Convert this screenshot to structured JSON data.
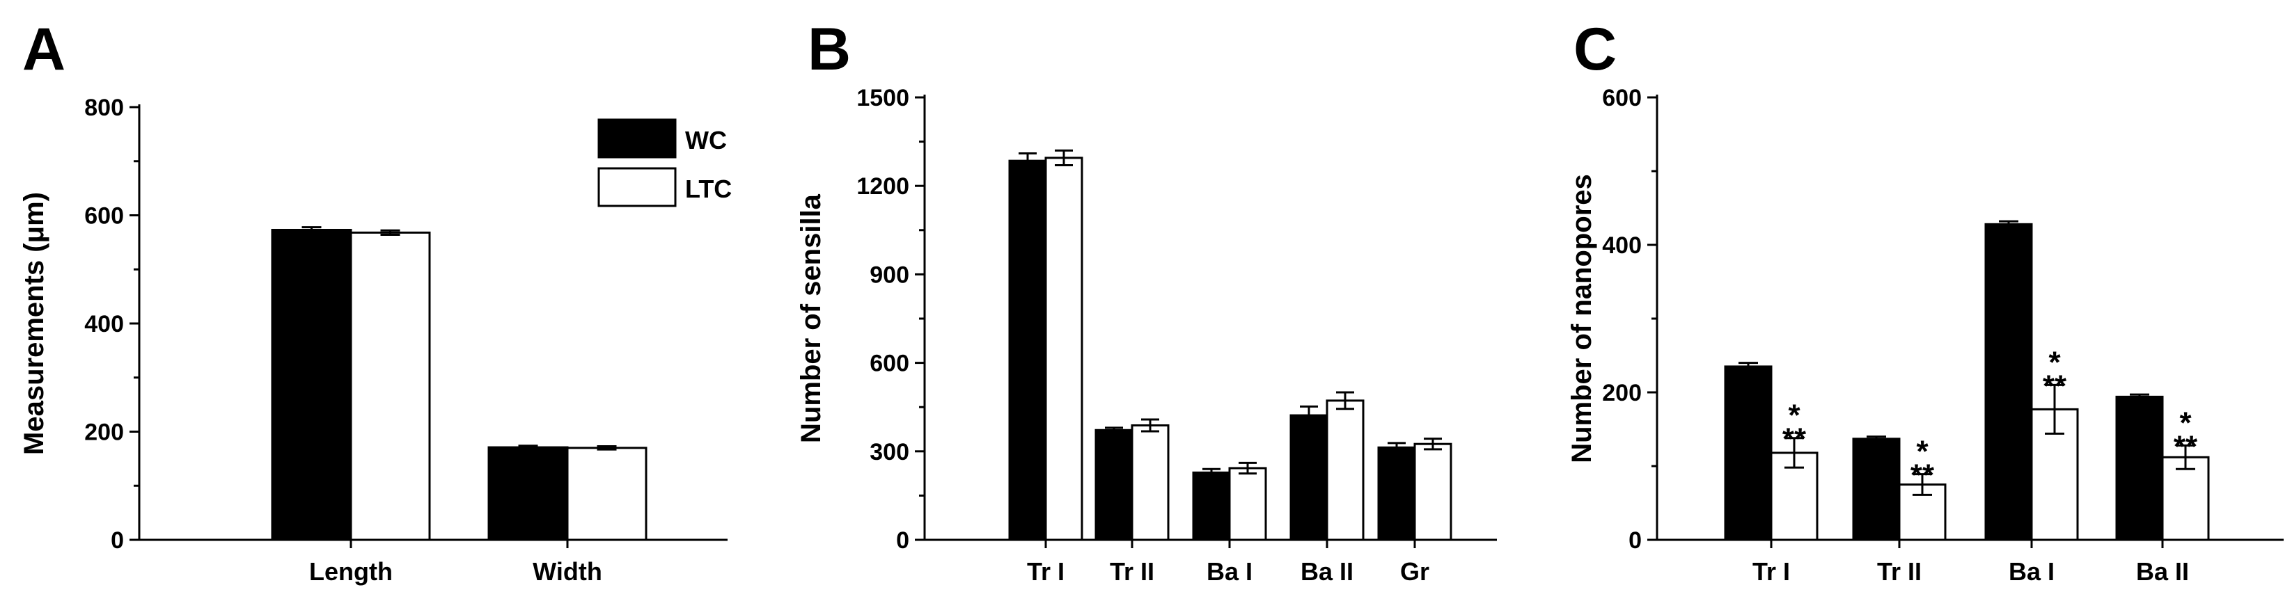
{
  "legend": [
    {
      "label": "WC",
      "color": "#000000"
    },
    {
      "label": "LTC",
      "color": "#ffffff"
    }
  ],
  "chart_data": [
    {
      "panel": "A",
      "type": "bar",
      "ylabel": "Measurements (μm)",
      "ylim": [
        0,
        800
      ],
      "yticks": [
        0,
        200,
        400,
        600,
        800
      ],
      "categories": [
        "Length",
        "Width"
      ],
      "series": [
        {
          "name": "WC",
          "values": [
            573,
            171
          ],
          "errors": [
            5,
            3
          ],
          "color": "#000000"
        },
        {
          "name": "LTC",
          "values": [
            568,
            170
          ],
          "errors": [
            4,
            3
          ],
          "color": "#ffffff"
        }
      ],
      "annotations": [
        "",
        ""
      ],
      "legend_placement": "top-right"
    },
    {
      "panel": "B",
      "type": "bar",
      "ylabel": "Number of sensilla",
      "ylim": [
        0,
        1500
      ],
      "yticks": [
        0,
        300,
        600,
        900,
        1200,
        1500
      ],
      "categories": [
        "Tr I",
        "Tr II",
        "Ba I",
        "Ba II",
        "Gr"
      ],
      "series": [
        {
          "name": "WC",
          "values": [
            1285,
            372,
            228,
            422,
            313
          ],
          "errors": [
            25,
            8,
            12,
            30,
            15
          ],
          "color": "#000000"
        },
        {
          "name": "LTC",
          "values": [
            1295,
            388,
            243,
            472,
            325
          ],
          "errors": [
            25,
            20,
            18,
            28,
            18
          ],
          "color": "#ffffff"
        }
      ],
      "annotations": [
        "",
        "",
        "",
        "",
        ""
      ]
    },
    {
      "panel": "C",
      "type": "bar",
      "ylabel": "Number of nanopores",
      "ylim": [
        0,
        600
      ],
      "yticks": [
        0,
        200,
        400,
        600
      ],
      "categories": [
        "Tr I",
        "Tr II",
        "Ba I",
        "Ba II"
      ],
      "series": [
        {
          "name": "WC",
          "values": [
            235,
            137,
            428,
            194
          ],
          "errors": [
            5,
            3,
            4,
            3
          ],
          "color": "#000000"
        },
        {
          "name": "LTC",
          "values": [
            118,
            75,
            177,
            112
          ],
          "errors": [
            20,
            14,
            33,
            16
          ],
          "color": "#ffffff"
        }
      ],
      "annotations": [
        "***",
        "***",
        "***",
        "***"
      ]
    }
  ]
}
